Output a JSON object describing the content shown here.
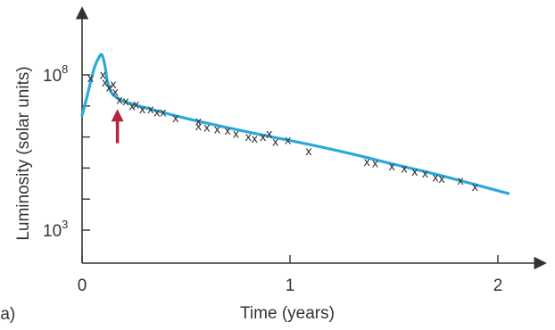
{
  "panel_label": "(a)",
  "colors": {
    "model_curve": "#29a9dc",
    "arrow": "#b5243a",
    "axis": "#333333",
    "marker": "#333333"
  },
  "chart_data": {
    "type": "line",
    "xlabel": "Time (years)",
    "ylabel": "Luminosity (solar units)",
    "x_ticks": [
      "0",
      "1",
      "2"
    ],
    "y_ticks": [
      {
        "value": 3,
        "label": "10",
        "exp": "3"
      },
      {
        "value": 8,
        "label": "10",
        "exp": "8"
      }
    ],
    "y_minor_ticks": [
      4,
      5,
      6,
      7
    ],
    "xlim": [
      0,
      2.2
    ],
    "ylim": [
      2.4,
      9.9
    ],
    "y_scale": "log10",
    "marker_symbol": "x",
    "annotation": {
      "type": "arrow",
      "x": 0.17,
      "y_from": 5.8,
      "y_to": 6.9
    },
    "series": [
      {
        "kind": "line",
        "points": [
          [
            0.0,
            6.7
          ],
          [
            0.02,
            7.2
          ],
          [
            0.04,
            7.75
          ],
          [
            0.06,
            8.25
          ],
          [
            0.08,
            8.55
          ],
          [
            0.095,
            8.65
          ],
          [
            0.11,
            8.3
          ],
          [
            0.12,
            7.85
          ],
          [
            0.135,
            7.5
          ],
          [
            0.16,
            7.3
          ],
          [
            0.2,
            7.15
          ],
          [
            0.3,
            6.95
          ],
          [
            0.5,
            6.6
          ],
          [
            0.7,
            6.3
          ],
          [
            0.9,
            6.02
          ],
          [
            1.1,
            5.75
          ],
          [
            1.3,
            5.45
          ],
          [
            1.5,
            5.12
          ],
          [
            1.7,
            4.8
          ],
          [
            1.9,
            4.45
          ],
          [
            2.05,
            4.18
          ]
        ]
      },
      {
        "kind": "scatter",
        "points": [
          [
            0.04,
            7.9
          ],
          [
            0.1,
            8.0
          ],
          [
            0.11,
            7.75
          ],
          [
            0.13,
            7.6
          ],
          [
            0.15,
            7.7
          ],
          [
            0.16,
            7.45
          ],
          [
            0.18,
            7.2
          ],
          [
            0.21,
            7.15
          ],
          [
            0.24,
            7.0
          ],
          [
            0.26,
            7.05
          ],
          [
            0.29,
            6.9
          ],
          [
            0.33,
            6.9
          ],
          [
            0.36,
            6.8
          ],
          [
            0.39,
            6.8
          ],
          [
            0.45,
            6.6
          ],
          [
            0.56,
            6.5
          ],
          [
            0.56,
            6.35
          ],
          [
            0.6,
            6.3
          ],
          [
            0.65,
            6.25
          ],
          [
            0.7,
            6.2
          ],
          [
            0.74,
            6.1
          ],
          [
            0.8,
            6.0
          ],
          [
            0.83,
            5.95
          ],
          [
            0.87,
            6.0
          ],
          [
            0.9,
            6.1
          ],
          [
            0.93,
            5.85
          ],
          [
            0.99,
            5.9
          ],
          [
            1.09,
            5.55
          ],
          [
            1.37,
            5.2
          ],
          [
            1.41,
            5.15
          ],
          [
            1.49,
            5.05
          ],
          [
            1.55,
            4.98
          ],
          [
            1.6,
            4.88
          ],
          [
            1.65,
            4.82
          ],
          [
            1.7,
            4.7
          ],
          [
            1.73,
            4.65
          ],
          [
            1.82,
            4.6
          ],
          [
            1.89,
            4.4
          ]
        ]
      }
    ]
  }
}
